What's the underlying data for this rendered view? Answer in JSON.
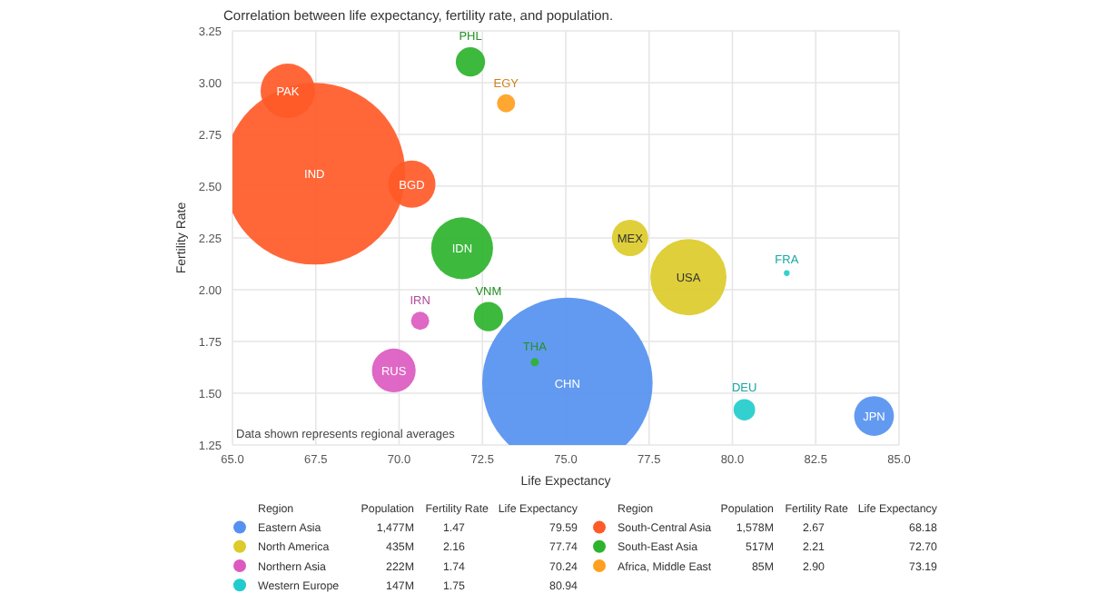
{
  "chart_data": {
    "type": "bubble",
    "title": "Correlation between life expectancy, fertility rate, and population.",
    "xlabel": "Life Expectancy",
    "ylabel": "Fertility Rate",
    "legend_title": "Region",
    "xlim": [
      65,
      85
    ],
    "ylim": [
      1.25,
      3.25
    ],
    "xticks": [
      {
        "value": 65,
        "label": "65.0"
      },
      {
        "value": 67.5,
        "label": "67.5"
      },
      {
        "value": 70,
        "label": "70.0"
      },
      {
        "value": 72.5,
        "label": "72.5"
      },
      {
        "value": 75,
        "label": "75.0"
      },
      {
        "value": 77.5,
        "label": "77.5"
      },
      {
        "value": 80,
        "label": "80.0"
      },
      {
        "value": 82.5,
        "label": "82.5"
      },
      {
        "value": 85,
        "label": "85.0"
      }
    ],
    "yticks": [
      {
        "value": 1.25,
        "label": "1.25"
      },
      {
        "value": 1.5,
        "label": "1.50"
      },
      {
        "value": 1.75,
        "label": "1.75"
      },
      {
        "value": 2,
        "label": "2.00"
      },
      {
        "value": 2.25,
        "label": "2.25"
      },
      {
        "value": 2.5,
        "label": "2.50"
      },
      {
        "value": 2.75,
        "label": "2.75"
      },
      {
        "value": 3,
        "label": "3.00"
      },
      {
        "value": 3.25,
        "label": "3.25"
      }
    ],
    "grid": true,
    "legend": "bottom",
    "series": [
      {
        "name": "Eastern Asia",
        "color": "#5591f0",
        "x": [
          75.05,
          84.25
        ],
        "values": [
          1.55,
          1.39
        ],
        "sizes": [
          0.88,
          0.048
        ]
      },
      {
        "name": "North America",
        "color": "#dccb2a",
        "x": [
          78.68,
          76.93
        ],
        "values": [
          2.06,
          2.25
        ],
        "sizes": [
          0.176,
          0.04
        ]
      },
      {
        "name": "Northern Asia",
        "color": "#dc5ac0",
        "x": [
          69.84,
          70.63
        ],
        "values": [
          1.61,
          1.85
        ],
        "sizes": [
          0.058,
          0.01
        ]
      },
      {
        "name": "Western Europe",
        "color": "#22cccc",
        "x": [
          81.63,
          80.36
        ],
        "values": [
          2.08,
          1.42
        ],
        "sizes": [
          0.001,
          0.014
        ]
      },
      {
        "name": "South-Central Asia",
        "color": "#ff5a28",
        "x": [
          67.46,
          66.66,
          70.38
        ],
        "values": [
          2.56,
          2.96,
          2.51
        ],
        "sizes": [
          1,
          0.09,
          0.068
        ]
      },
      {
        "name": "South-East Asia",
        "color": "#2db32d",
        "x": [
          71.89,
          72.14,
          72.68,
          74.07
        ],
        "values": [
          2.2,
          3.1,
          1.87,
          1.65
        ],
        "sizes": [
          0.116,
          0.026,
          0.026,
          0.002
        ]
      },
      {
        "name": "Africa, Middle East",
        "color": "#ffa020",
        "x": [
          73.21
        ],
        "values": [
          2.9
        ],
        "sizes": [
          0.01
        ]
      }
    ],
    "annotations": [
      "Data shown represents regional averages",
      "Population",
      "Fertility Rate",
      "Life Expectancy",
      "1,477M",
      "1.47",
      "79.59",
      "435M",
      "2.16",
      "77.74",
      "222M",
      "1.74",
      "70.24",
      "147M",
      "1.75",
      "80.94",
      "1,578M",
      "2.67",
      "68.18",
      "517M",
      "2.21",
      "72.70",
      "85M",
      "2.90",
      "73.19",
      {
        "text": "CHN",
        "x": 75.05,
        "y": 1.55
      },
      {
        "text": "JPN",
        "x": 84.25,
        "y": 1.39
      },
      {
        "text": "USA",
        "x": 78.68,
        "y": 2.06
      },
      {
        "text": "MEX",
        "x": 76.93,
        "y": 2.25
      },
      {
        "text": "RUS",
        "x": 69.84,
        "y": 1.61
      },
      {
        "text": "IRN",
        "x": 70.63,
        "y": 1.85
      },
      {
        "text": "FRA",
        "x": 81.63,
        "y": 2.08
      },
      {
        "text": "DEU",
        "x": 80.36,
        "y": 1.42
      },
      {
        "text": "IND",
        "x": 67.46,
        "y": 2.56
      },
      {
        "text": "PAK",
        "x": 66.66,
        "y": 2.96
      },
      {
        "text": "BGD",
        "x": 70.38,
        "y": 2.51
      },
      {
        "text": "IDN",
        "x": 71.89,
        "y": 2.2
      },
      {
        "text": "PHL",
        "x": 72.14,
        "y": 3.1
      },
      {
        "text": "VNM",
        "x": 72.68,
        "y": 1.87
      },
      {
        "text": "THA",
        "x": 74.07,
        "y": 1.65
      },
      {
        "text": "EGY",
        "x": 73.21,
        "y": 2.9
      }
    ]
  }
}
